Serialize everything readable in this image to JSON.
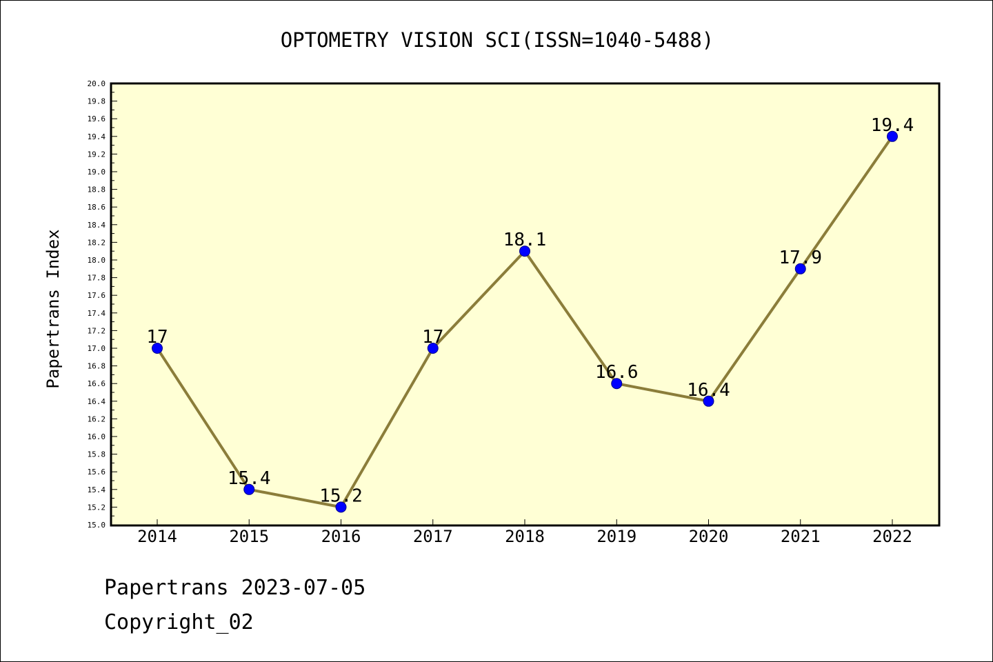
{
  "chart_data": {
    "type": "line",
    "title": "OPTOMETRY VISION SCI(ISSN=1040-5488)",
    "xlabel": "",
    "ylabel": "Papertrans Index",
    "categories": [
      "2014",
      "2015",
      "2016",
      "2017",
      "2018",
      "2019",
      "2020",
      "2021",
      "2022"
    ],
    "values": [
      17,
      15.4,
      15.2,
      17,
      18.1,
      16.6,
      16.4,
      17.9,
      19.4
    ],
    "data_labels": [
      "17",
      "15.4",
      "15.2",
      "17",
      "18.1",
      "16.6",
      "16.4",
      "17.9",
      "19.4"
    ],
    "ylim": [
      15.0,
      20.0
    ],
    "ytick_step": 0.2,
    "grid": false,
    "colors": {
      "plot_background": "#ffffd5",
      "line": "#8b7d3a",
      "marker": "#0000ff",
      "marker_edge": "#00008b"
    }
  },
  "footer": {
    "line1": "Papertrans 2023-07-05",
    "line2": "Copyright_02"
  }
}
